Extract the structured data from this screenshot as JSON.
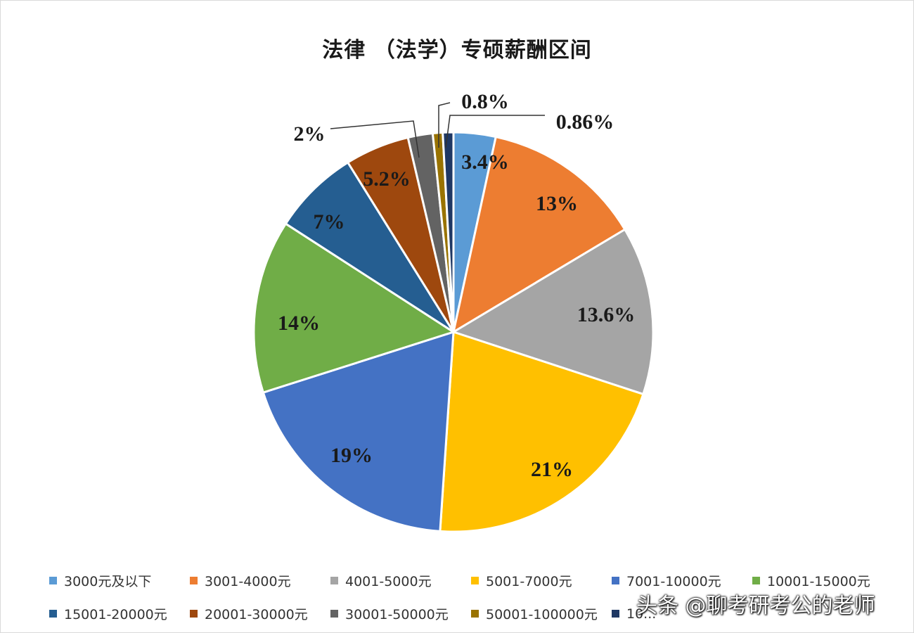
{
  "chart_data": {
    "type": "pie",
    "title": "法律 （法学）专硕薪酬区间",
    "slices": [
      {
        "label": "3000元及以下",
        "value": 3.4,
        "display": "3.4%",
        "color": "#5B9BD5"
      },
      {
        "label": "3001-4000元",
        "value": 13,
        "display": "13%",
        "color": "#ED7D31"
      },
      {
        "label": "4001-5000元",
        "value": 13.6,
        "display": "13.6%",
        "color": "#A5A5A5"
      },
      {
        "label": "5001-7000元",
        "value": 21,
        "display": "21%",
        "color": "#FFC000"
      },
      {
        "label": "7001-10000元",
        "value": 19,
        "display": "19%",
        "color": "#4472C4"
      },
      {
        "label": "10001-15000元",
        "value": 14,
        "display": "14%",
        "color": "#70AD47"
      },
      {
        "label": "15001-20000元",
        "value": 7,
        "display": "7%",
        "color": "#255E91"
      },
      {
        "label": "20001-30000元",
        "value": 5.2,
        "display": "5.2%",
        "color": "#9E480E"
      },
      {
        "label": "30001-50000元",
        "value": 2,
        "display": "2%",
        "color": "#636363"
      },
      {
        "label": "50001-100000元",
        "value": 0.8,
        "display": "0.8%",
        "color": "#997300"
      },
      {
        "label": "10...",
        "value": 0.86,
        "display": "0.86%",
        "color": "#1F3864"
      }
    ],
    "legend_position": "bottom"
  },
  "watermark": "头条 @聊考研考公的老师"
}
